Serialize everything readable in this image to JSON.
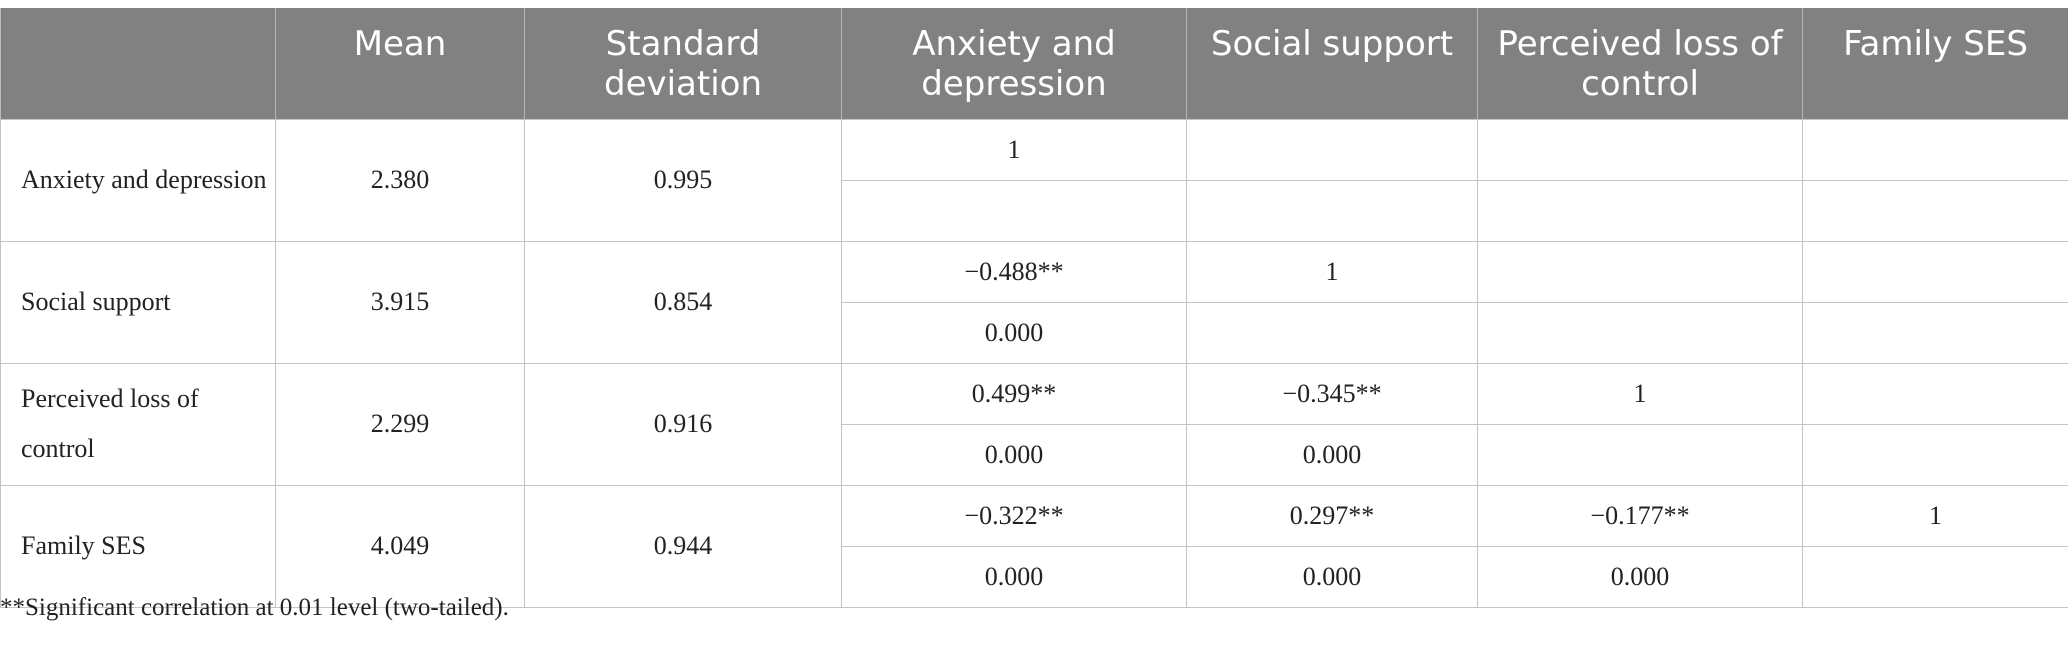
{
  "table": {
    "headers": [
      "",
      "Mean",
      "Standard deviation",
      "Anxiety and depression",
      "Social support",
      "Perceived loss of control",
      "Family SES"
    ],
    "rows": [
      {
        "label": "Anxiety and depression",
        "mean": "2.380",
        "sd": "0.995",
        "r": [
          "1",
          "",
          "",
          ""
        ],
        "p": [
          "",
          "",
          "",
          ""
        ]
      },
      {
        "label": "Social support",
        "mean": "3.915",
        "sd": "0.854",
        "r": [
          "−0.488**",
          "1",
          "",
          ""
        ],
        "p": [
          "0.000",
          "",
          "",
          ""
        ]
      },
      {
        "label": "Perceived loss of control",
        "mean": "2.299",
        "sd": "0.916",
        "r": [
          "0.499**",
          "−0.345**",
          "1",
          ""
        ],
        "p": [
          "0.000",
          "0.000",
          "",
          ""
        ]
      },
      {
        "label": "Family SES",
        "mean": "4.049",
        "sd": "0.944",
        "r": [
          "−0.322**",
          "0.297**",
          "−0.177**",
          "1"
        ],
        "p": [
          "0.000",
          "0.000",
          "0.000",
          ""
        ]
      }
    ]
  },
  "footnote": "**Significant correlation at 0.01 level (two-tailed).",
  "colors": {
    "header_bg": "#818181",
    "header_text": "#ffffff",
    "grid": "#c4c4c4"
  }
}
